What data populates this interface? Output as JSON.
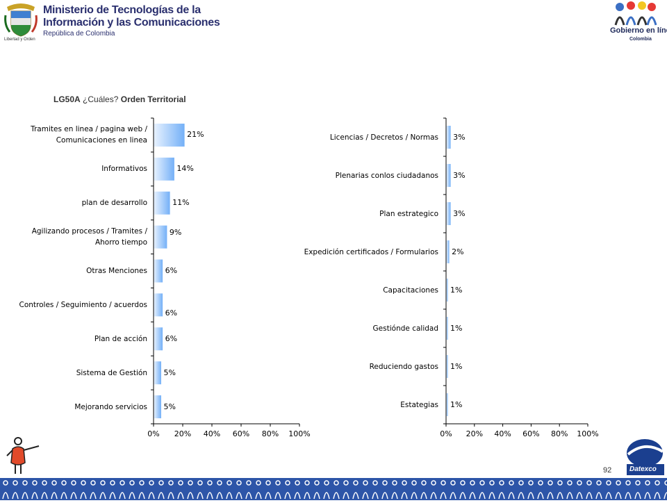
{
  "header": {
    "ministry_line1": "Ministerio de Tecnologías de la",
    "ministry_line2": "Información y las Comunicaciones",
    "ministry_line3": "República de Colombia",
    "seal_motto": "Libertad y Orden",
    "gel_title": "Gobierno en línea",
    "gel_sub": "Colombia"
  },
  "title": {
    "code": "LG50A",
    "question": "¿Cuáles?",
    "segment": "Orden Territorial"
  },
  "colors": {
    "bar_light": "#e8f2ff",
    "bar_dark": "#74b0f7",
    "footer": "#2d55a8",
    "title_text": "#333333"
  },
  "chart_data": [
    {
      "type": "bar",
      "orientation": "horizontal",
      "categories": [
        "Tramites en linea / pagina web / Comunicaciones en linea",
        "Informativos",
        "plan de desarrollo",
        "Agilizando procesos / Tramites / Ahorro tiempo",
        "Otras Menciones",
        "Controles / Seguimiento / acuerdos",
        "Plan de acción",
        "Sistema de Gestión",
        "Mejorando servicios"
      ],
      "category_lines": [
        [
          "Tramites en linea / pagina web /",
          "Comunicaciones en linea"
        ],
        [
          "Informativos"
        ],
        [
          "plan de desarrollo"
        ],
        [
          "Agilizando procesos / Tramites /",
          "Ahorro tiempo"
        ],
        [
          "Otras Menciones"
        ],
        [
          "Controles / Seguimiento / acuerdos"
        ],
        [
          "Plan de acción"
        ],
        [
          "Sistema de Gestión"
        ],
        [
          "Mejorando servicios"
        ]
      ],
      "values": [
        21,
        14,
        11,
        9,
        6,
        6,
        6,
        5,
        5
      ],
      "value_labels": [
        "21%",
        "14%",
        "11%",
        "9%",
        "6%",
        "6%",
        "6%",
        "5%",
        "5%"
      ],
      "xlim": [
        0,
        100
      ],
      "ticks": [
        "0%",
        "20%",
        "40%",
        "60%",
        "80%",
        "100%"
      ],
      "grid": false
    },
    {
      "type": "bar",
      "orientation": "horizontal",
      "categories": [
        "Licencias / Decretos / Normas",
        "Plenarias conlos ciudadanos",
        "Plan estrategico",
        "Expedición certificados / Formularios",
        "Capacitaciones",
        "Gestiónde calidad",
        "Reduciendo gastos",
        "Estategias"
      ],
      "category_lines": [
        [
          "Licencias / Decretos / Normas"
        ],
        [
          "Plenarias conlos ciudadanos"
        ],
        [
          "Plan estrategico"
        ],
        [
          "Expedición certificados / Formularios"
        ],
        [
          "Capacitaciones"
        ],
        [
          "Gestiónde calidad"
        ],
        [
          "Reduciendo gastos"
        ],
        [
          "Estategias"
        ]
      ],
      "values": [
        3,
        3,
        3,
        2,
        1,
        1,
        1,
        1
      ],
      "value_labels": [
        "3%",
        "3%",
        "3%",
        "2%",
        "1%",
        "1%",
        "1%",
        "1%"
      ],
      "xlim": [
        0,
        100
      ],
      "ticks": [
        "0%",
        "20%",
        "40%",
        "60%",
        "80%",
        "100%"
      ],
      "grid": false
    }
  ],
  "footer": {
    "page_number": "92",
    "datexco": "Datexco"
  }
}
